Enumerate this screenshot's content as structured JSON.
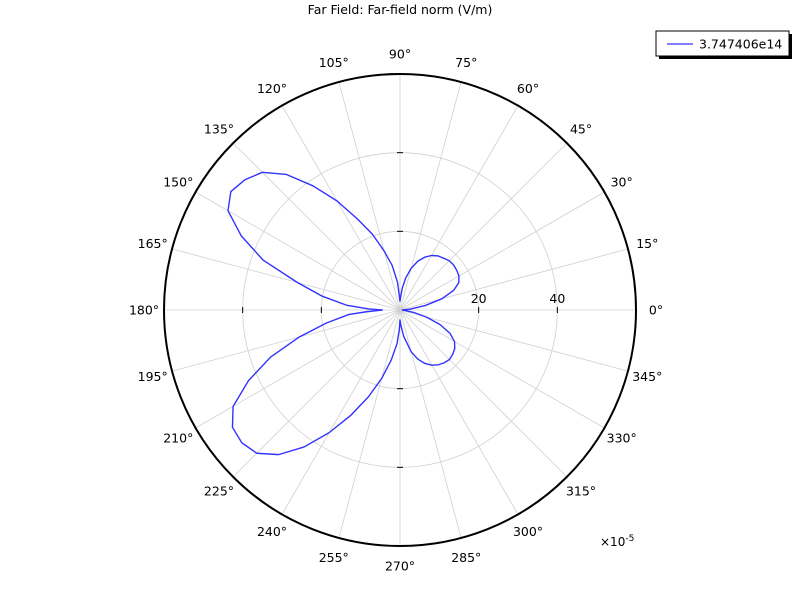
{
  "chart_data": {
    "type": "polar-line",
    "title": "Far Field: Far-field norm (V/m)",
    "r_axis": {
      "range": [
        0,
        60
      ],
      "ticks": [
        0,
        20,
        40,
        60
      ],
      "tick_labels": [
        "20",
        "40"
      ],
      "multiplier_label": "×10",
      "multiplier_exp": "-5"
    },
    "angle_axis": {
      "unit": "degrees",
      "ticks": [
        0,
        15,
        30,
        45,
        60,
        75,
        90,
        105,
        120,
        135,
        150,
        165,
        180,
        195,
        210,
        225,
        240,
        255,
        270,
        285,
        300,
        315,
        330,
        345
      ],
      "tick_labels": [
        "0°",
        "15°",
        "30°",
        "45°",
        "60°",
        "75°",
        "90°",
        "105°",
        "120°",
        "135°",
        "150°",
        "165°",
        "180°",
        "195°",
        "210°",
        "225°",
        "240°",
        "255°",
        "270°",
        "285°",
        "300°",
        "315°",
        "330°",
        "345°"
      ]
    },
    "grid": true,
    "legend_position": "top-right",
    "series": [
      {
        "name": "3.747406e14",
        "color": "#3333ff",
        "points": [
          [
            0,
            0.5
          ],
          [
            5,
            2.5
          ],
          [
            10,
            6.5
          ],
          [
            15,
            11
          ],
          [
            20,
            14.5
          ],
          [
            25,
            16.5
          ],
          [
            30,
            17.3
          ],
          [
            35,
            17.6
          ],
          [
            40,
            17.8
          ],
          [
            45,
            17.7
          ],
          [
            50,
            17.2
          ],
          [
            55,
            16.8
          ],
          [
            60,
            16.0
          ],
          [
            65,
            14.8
          ],
          [
            70,
            13.2
          ],
          [
            75,
            11.0
          ],
          [
            80,
            8.2
          ],
          [
            84,
            5.6
          ],
          [
            87,
            3.5
          ],
          [
            90,
            2.2
          ],
          [
            95,
            7.0
          ],
          [
            100,
            11.5
          ],
          [
            105,
            15.5
          ],
          [
            110,
            20.5
          ],
          [
            115,
            25.5
          ],
          [
            120,
            32.0
          ],
          [
            125,
            38.5
          ],
          [
            130,
            45.0
          ],
          [
            135,
            49.5
          ],
          [
            140,
            51.5
          ],
          [
            145,
            52.5
          ],
          [
            150,
            50.5
          ],
          [
            155,
            44.5
          ],
          [
            160,
            37.0
          ],
          [
            165,
            27.0
          ],
          [
            170,
            20.0
          ],
          [
            175,
            13.5
          ],
          [
            178,
            8.0
          ],
          [
            180,
            4.5
          ],
          [
            183,
            8.5
          ],
          [
            185,
            13.0
          ],
          [
            190,
            19.0
          ],
          [
            195,
            26.5
          ],
          [
            200,
            35.0
          ],
          [
            205,
            42.5
          ],
          [
            210,
            49.0
          ],
          [
            215,
            52.0
          ],
          [
            220,
            52.5
          ],
          [
            225,
            51.5
          ],
          [
            230,
            48.0
          ],
          [
            235,
            42.5
          ],
          [
            240,
            36.0
          ],
          [
            245,
            29.5
          ],
          [
            250,
            23.5
          ],
          [
            255,
            18.0
          ],
          [
            260,
            13.0
          ],
          [
            265,
            8.5
          ],
          [
            268,
            5.0
          ],
          [
            270,
            2.5
          ],
          [
            273,
            3.8
          ],
          [
            278,
            6.8
          ],
          [
            285,
            11.0
          ],
          [
            290,
            13.3
          ],
          [
            295,
            15.0
          ],
          [
            300,
            16.2
          ],
          [
            305,
            17.0
          ],
          [
            310,
            17.5
          ],
          [
            315,
            17.8
          ],
          [
            320,
            17.5
          ],
          [
            325,
            17.0
          ],
          [
            330,
            16.0
          ],
          [
            335,
            14.0
          ],
          [
            340,
            10.8
          ],
          [
            345,
            7.0
          ],
          [
            350,
            3.5
          ],
          [
            355,
            1.2
          ],
          [
            360,
            0.5
          ]
        ]
      }
    ]
  }
}
